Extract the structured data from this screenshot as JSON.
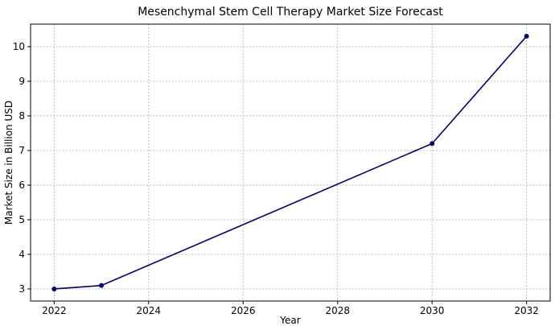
{
  "chart_data": {
    "type": "line",
    "title": "Mesenchymal Stem Cell Therapy Market Size Forecast",
    "xlabel": "Year",
    "ylabel": "Market Size in Billion USD",
    "xlim": [
      2021.5,
      2032.5
    ],
    "ylim": [
      2.65,
      10.65
    ],
    "xticks": [
      2022,
      2024,
      2026,
      2028,
      2030,
      2032
    ],
    "yticks": [
      3,
      4,
      5,
      6,
      7,
      8,
      9,
      10
    ],
    "grid": true,
    "series": [
      {
        "color": "#000066",
        "x": [
          2022,
          2023,
          2030,
          2032
        ],
        "y": [
          3.0,
          3.1,
          7.2,
          10.3
        ]
      }
    ]
  }
}
